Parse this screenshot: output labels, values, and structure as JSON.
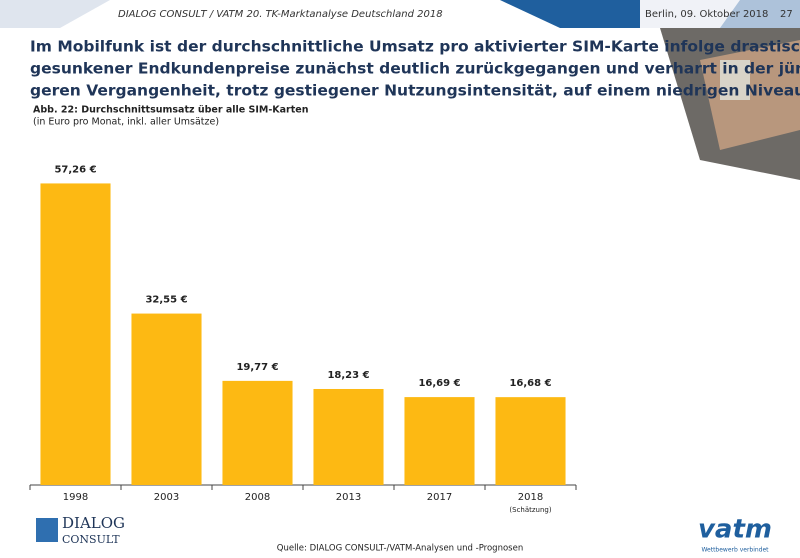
{
  "header": {
    "left": "DIALOG CONSULT / VATM 20. TK-Marktanalyse Deutschland 2018",
    "date": "Berlin, 09. Oktober 2018",
    "page": "27"
  },
  "title_lines": [
    "Im Mobilfunk ist der durchschnittliche Umsatz pro aktivierter SIM-Karte infolge drastisch",
    "gesunkener Endkundenpreise zunächst deutlich zurückgegangen und verharrt in der jün-",
    "geren Vergangenheit, trotz gestiegener Nutzungsintensität, auf einem niedrigen Niveau"
  ],
  "chart_data": {
    "type": "bar",
    "title": "Abb. 22: Durchschnittsumsatz über alle SIM-Karten",
    "subtitle": "(in Euro pro Monat, inkl. aller Umsätze)",
    "categories": [
      "1998",
      "2003",
      "2008",
      "2013",
      "2017",
      "2018"
    ],
    "values": [
      57.26,
      32.55,
      19.77,
      18.23,
      16.69,
      16.68
    ],
    "value_labels": [
      "57,26 €",
      "32,55 €",
      "19,77 €",
      "18,23 €",
      "16,69 €",
      "16,68 €"
    ],
    "x_note": "(Schätzung)",
    "color": "#fdb913",
    "ylim": [
      0,
      60
    ]
  },
  "footer": {
    "source": "Quelle: DIALOG CONSULT-/VATM-Analysen und -Prognosen",
    "logo_left_1": "DIALOG",
    "logo_left_2": "CONSULT",
    "logo_right": "vatm",
    "logo_right_tagline": "Wettbewerb verbindet"
  }
}
